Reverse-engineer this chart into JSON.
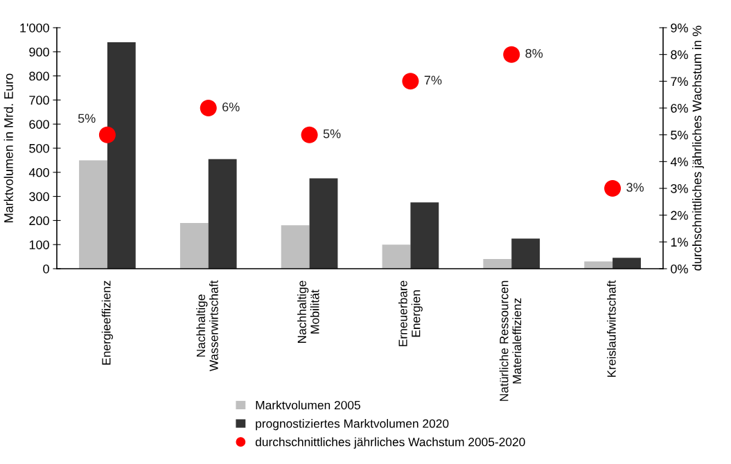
{
  "chart_data": {
    "type": "bar",
    "categories": [
      "Energieeffizienz",
      "Nachhaltige\nWasserwirtschaft",
      "Nachhaltige\nMobilität",
      "Erneuerbare\nEnergien",
      "Natürliche Ressourcen\nMaterialeffizienz",
      "Kreislaufwirtschaft"
    ],
    "series": [
      {
        "name": "Marktvolumen 2005",
        "color": "#bfbfbf",
        "values": [
          450,
          190,
          180,
          100,
          40,
          30
        ]
      },
      {
        "name": "prognostiziertes Marktvolumen 2020",
        "color": "#333333",
        "values": [
          940,
          455,
          375,
          275,
          125,
          45
        ]
      },
      {
        "name": "durchschnittliches jährliches Wachstum 2005-2020",
        "type": "scatter",
        "axis": "y2",
        "color": "#ff0000",
        "marker": "circle",
        "values": [
          5,
          6,
          5,
          7,
          8,
          3
        ],
        "value_labels": [
          "5%",
          "6%",
          "5%",
          "7%",
          "8%",
          "3%"
        ]
      }
    ],
    "ylabel": "Marktvolumen in Mrd. Euro",
    "y2label": "durchschnittliches jährliches Wachstum in %",
    "ylim": [
      0,
      1000
    ],
    "yticks": [
      0,
      100,
      200,
      300,
      400,
      500,
      600,
      700,
      800,
      900,
      {
        "value": 1000,
        "label": "1'000"
      }
    ],
    "y2lim": [
      0,
      9
    ],
    "y2ticks": [
      {
        "value": 0,
        "label": "0%"
      },
      {
        "value": 1,
        "label": "1%"
      },
      {
        "value": 2,
        "label": "2%"
      },
      {
        "value": 3,
        "label": "3%"
      },
      {
        "value": 4,
        "label": "4%"
      },
      {
        "value": 5,
        "label": "5%"
      },
      {
        "value": 6,
        "label": "6%"
      },
      {
        "value": 7,
        "label": "7%"
      },
      {
        "value": 8,
        "label": "8%"
      },
      {
        "value": 9,
        "label": "9%"
      }
    ],
    "grid": false,
    "legend": "bottom"
  }
}
